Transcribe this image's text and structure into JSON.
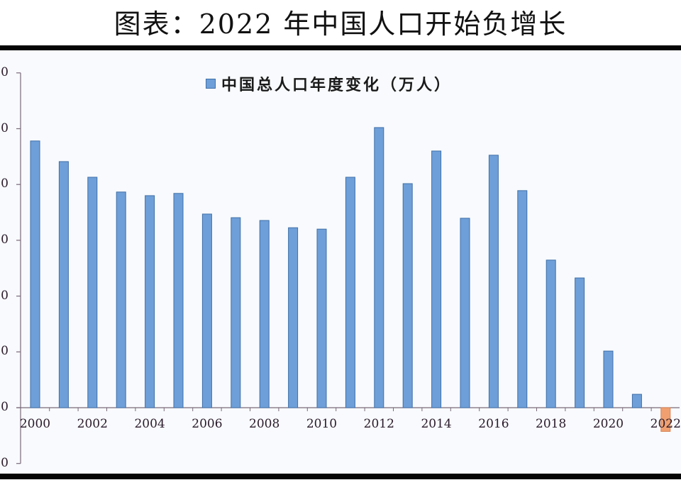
{
  "header": {
    "title": "图表：2022 年中国人口开始负增长"
  },
  "legend": {
    "label": "中国总人口年度变化（万人）",
    "swatch_color": "#6f9fd8"
  },
  "colors": {
    "positive_bar": "#6f9fd8",
    "positive_border": "#3f6fa8",
    "negative_bar": "#f0a070",
    "negative_border": "#d98050",
    "axis": "#7a6a7a",
    "background": "#f8fafd"
  },
  "y_tick_labels_visible": [
    "0",
    "0",
    "0",
    "0",
    "0",
    "0",
    "0",
    "0"
  ],
  "chart_data": {
    "type": "bar",
    "title": "图表：2022 年中国人口开始负增长",
    "legend": [
      "中国总人口年度变化（万人）"
    ],
    "legend_position": "top-center",
    "xlabel": "",
    "ylabel": "",
    "categories": [
      "2000",
      "2001",
      "2002",
      "2003",
      "2004",
      "2005",
      "2006",
      "2007",
      "2008",
      "2009",
      "2010",
      "2011",
      "2012",
      "2013",
      "2014",
      "2015",
      "2016",
      "2017",
      "2018",
      "2019",
      "2020",
      "2021",
      "2022"
    ],
    "x_tick_labels": [
      "2000",
      "2002",
      "2004",
      "2006",
      "2008",
      "2010",
      "2012",
      "2014",
      "2016",
      "2018",
      "2020",
      "2022"
    ],
    "series": [
      {
        "name": "中国总人口年度变化（万人）",
        "values": [
          956,
          882,
          826,
          773,
          760,
          768,
          694,
          681,
          671,
          645,
          640,
          826,
          1004,
          803,
          920,
          679,
          905,
          778,
          529,
          465,
          203,
          48,
          -85
        ]
      }
    ],
    "ylim": [
      -200,
      1200
    ],
    "y_ticks": [
      -200,
      0,
      200,
      400,
      600,
      800,
      1000,
      1200
    ],
    "grid": false,
    "highlight": {
      "category": "2022",
      "color": "#f0a070"
    }
  }
}
